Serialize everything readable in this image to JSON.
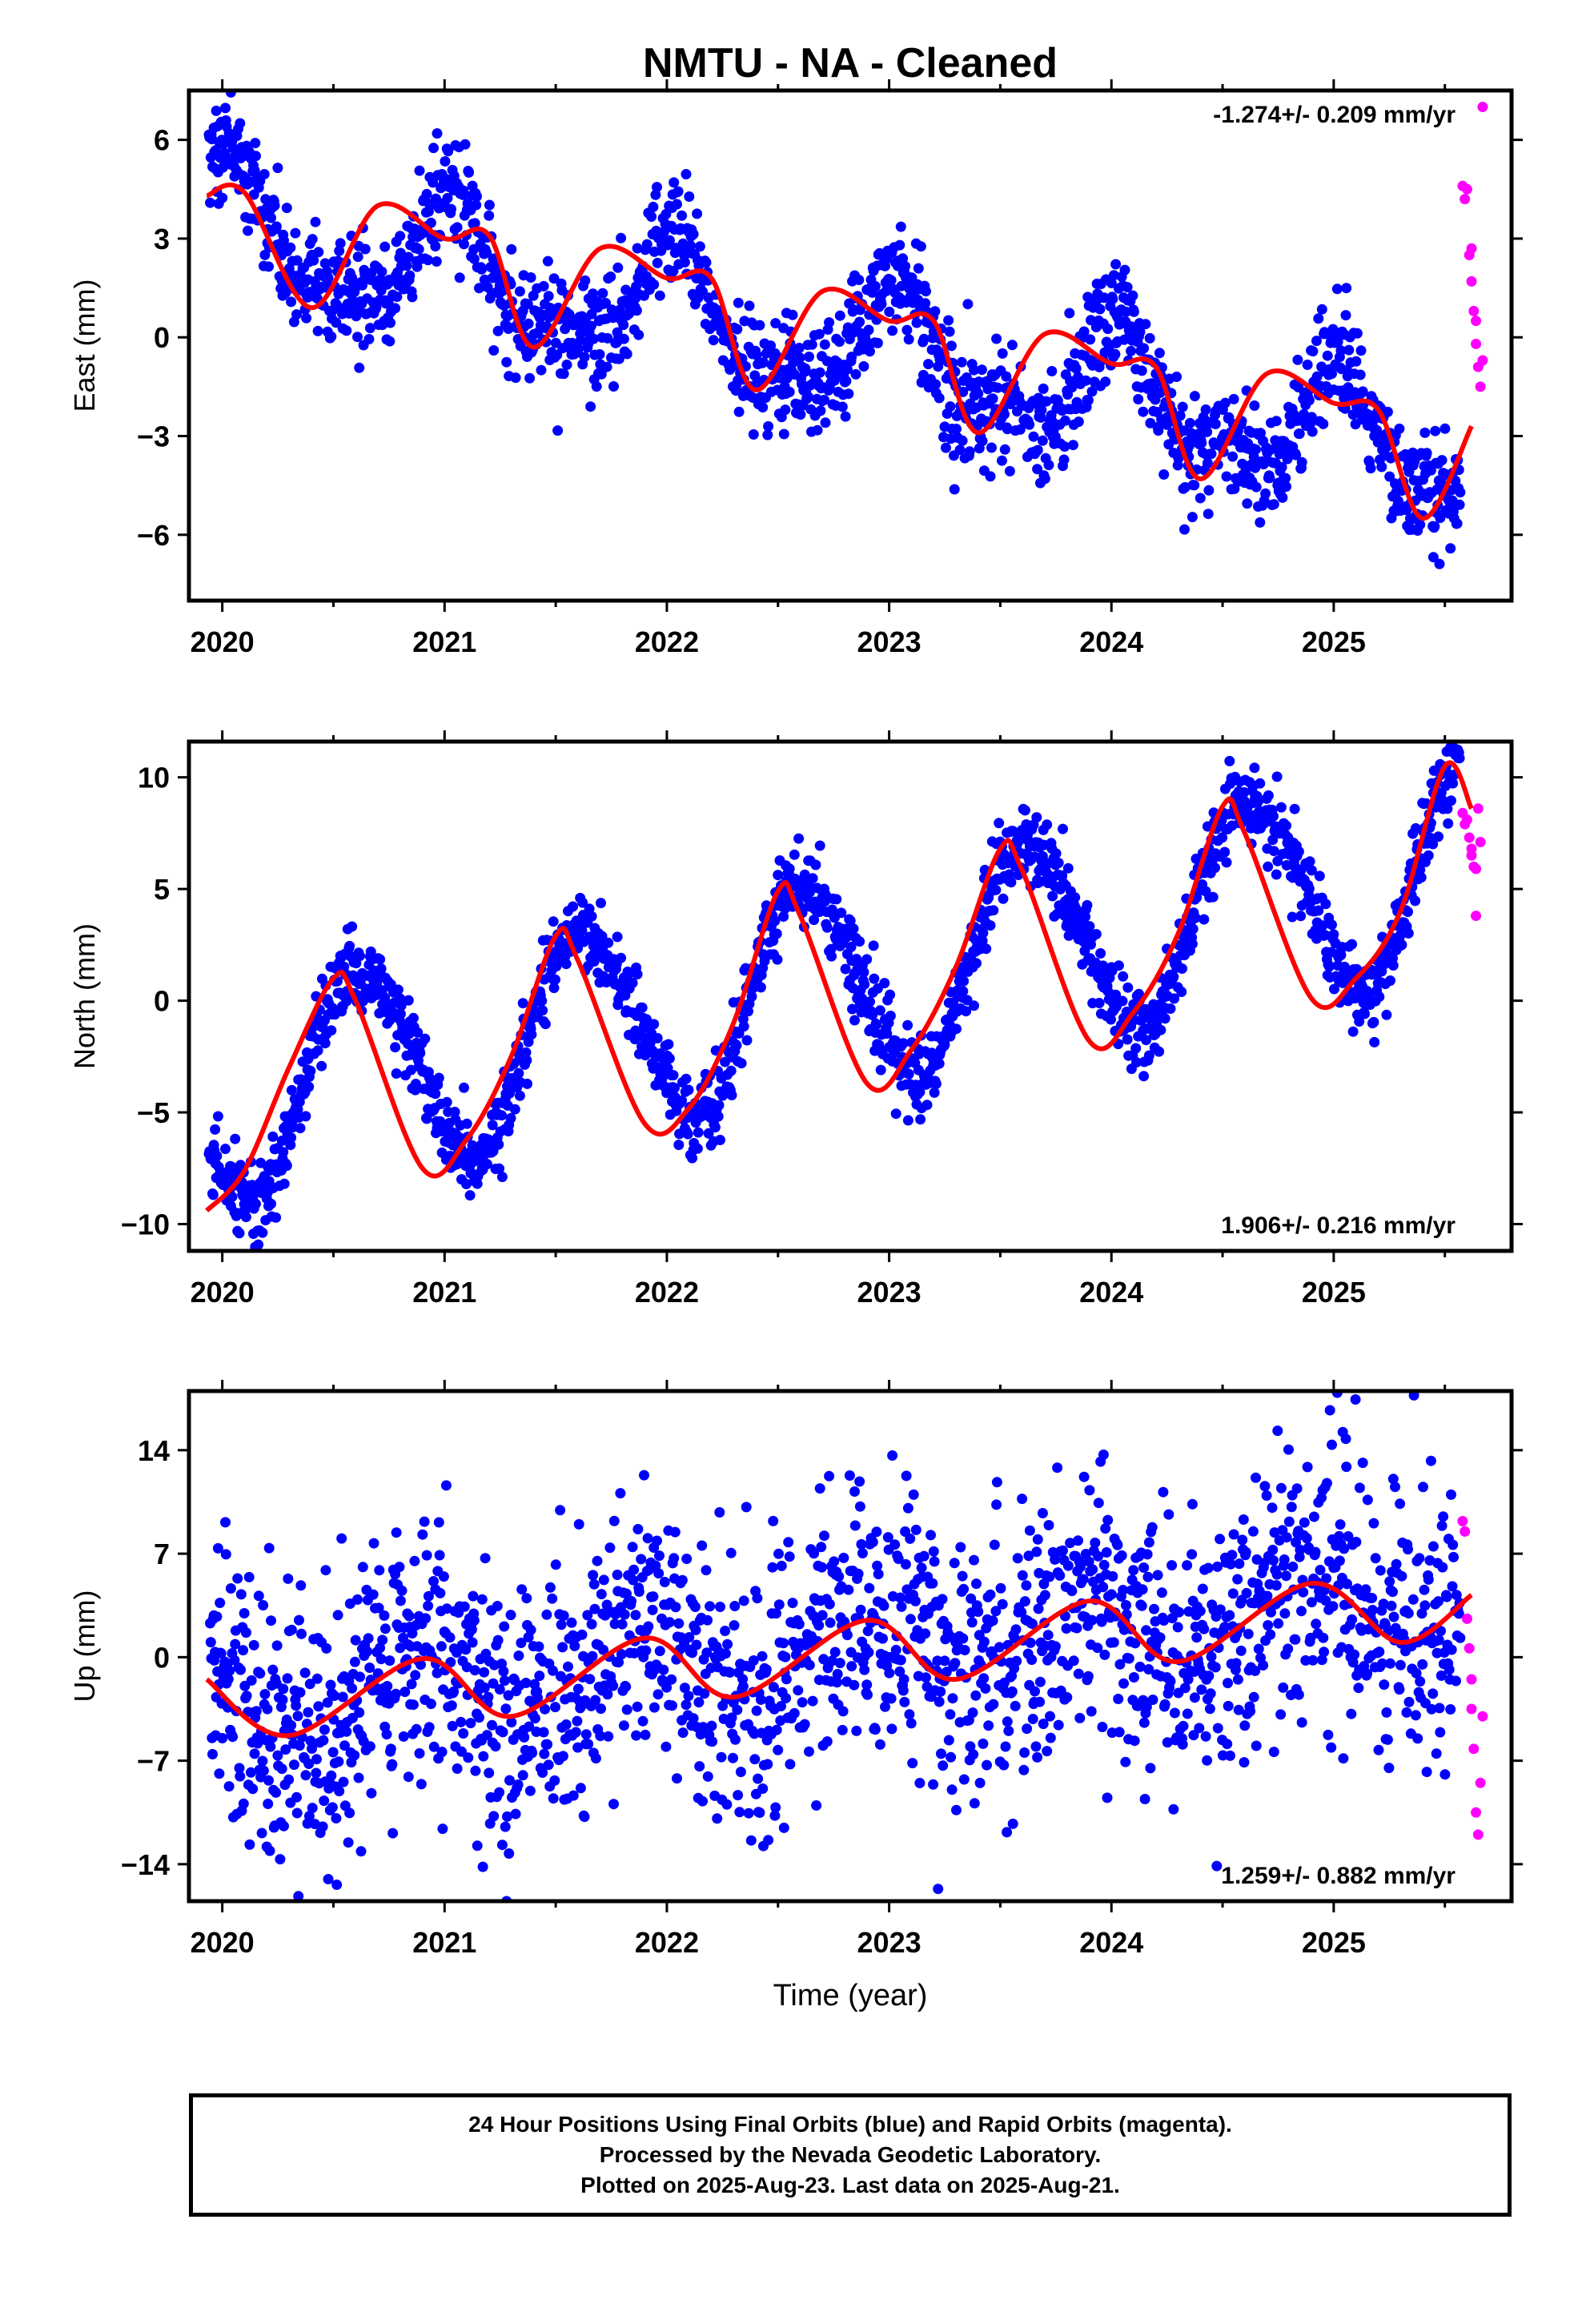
{
  "title": "NMTU  - NA - Cleaned",
  "xlabel": "Time (year)",
  "caption": [
    "24 Hour Positions Using Final Orbits (blue) and Rapid Orbits (magenta).",
    "Processed by the Nevada Geodetic Laboratory.",
    "Plotted on 2025-Aug-23. Last data on 2025-Aug-21."
  ],
  "colors": {
    "final": "#0000ff",
    "rapid": "#ff00ff",
    "fit": "#ff0000",
    "axis": "#000000"
  },
  "chart_data": [
    {
      "type": "scatter",
      "ylabel": "East (mm)",
      "xlim": [
        2019.85,
        2025.8
      ],
      "ylim": [
        -8,
        7.5
      ],
      "yticks": [
        -6,
        -3,
        0,
        3,
        6
      ],
      "yticklabels": [
        "−6",
        "−3",
        "0",
        "3",
        "6"
      ],
      "xticks": [
        2020,
        2021,
        2022,
        2023,
        2024,
        2025
      ],
      "xticklabels": [
        "2020",
        "2021",
        "2022",
        "2023",
        "2024",
        "2025"
      ],
      "rate_label": "-1.274+/- 0.209 mm/yr",
      "rate_position": "top-right",
      "fit_model": {
        "t0": 2022.7,
        "offset": -0.1,
        "rate": -1.274,
        "harmonics": [
          [
            1.7,
            0.3
          ],
          [
            0.7,
            0.25
          ]
        ],
        "std": 0.85
      },
      "fit_line": {
        "x": [
          2019.93,
          2020.1,
          2020.4,
          2020.7,
          2021.0,
          2021.2,
          2021.4,
          2021.7,
          2022.0,
          2022.2,
          2022.4,
          2022.7,
          2023.0,
          2023.2,
          2023.4,
          2023.7,
          2024.0,
          2024.2,
          2024.4,
          2024.7,
          2025.0,
          2025.2,
          2025.4,
          2025.62
        ],
        "y": [
          4.3,
          4.4,
          0.9,
          4.0,
          3.0,
          3.1,
          -0.3,
          2.7,
          1.8,
          1.8,
          -1.6,
          1.4,
          0.5,
          0.5,
          -2.9,
          0.1,
          -0.8,
          -0.9,
          -4.3,
          -1.1,
          -2.0,
          -2.2,
          -5.5,
          -2.7
        ]
      },
      "rapid": {
        "x": [
          2025.58,
          2025.59,
          2025.6,
          2025.61,
          2025.62,
          2025.62,
          2025.63,
          2025.64,
          2025.64,
          2025.65,
          2025.66,
          2025.67,
          2025.67
        ],
        "y": [
          4.6,
          4.2,
          4.5,
          2.5,
          2.7,
          1.7,
          0.8,
          0.5,
          -0.2,
          -0.9,
          -1.5,
          -0.7,
          7.0
        ]
      }
    },
    {
      "type": "scatter",
      "ylabel": "North (mm)",
      "xlim": [
        2019.85,
        2025.8
      ],
      "ylim": [
        -11.2,
        11.6
      ],
      "yticks": [
        -10,
        -5,
        0,
        5,
        10
      ],
      "yticklabels": [
        "−10",
        "−5",
        "0",
        "5",
        "10"
      ],
      "xticks": [
        2020,
        2021,
        2022,
        2023,
        2024,
        2025
      ],
      "xticklabels": [
        "2020",
        "2021",
        "2022",
        "2023",
        "2024",
        "2025"
      ],
      "rate_label": "1.906+/- 0.216 mm/yr",
      "rate_position": "bottom-right",
      "fit_model": {
        "t0": 2022.7,
        "offset": 0.7,
        "rate": 1.906,
        "harmonics": [
          [
            -3.5,
            -3.2
          ],
          [
            0.4,
            -0.2
          ]
        ],
        "std": 0.9
      },
      "fit_line": {
        "x": [
          2019.93,
          2020.1,
          2020.3,
          2020.5,
          2020.6,
          2020.9,
          2021.1,
          2021.3,
          2021.5,
          2021.6,
          2021.9,
          2022.1,
          2022.3,
          2022.5,
          2022.6,
          2022.9,
          2023.1,
          2023.3,
          2023.5,
          2023.6,
          2023.9,
          2024.1,
          2024.3,
          2024.5,
          2024.6,
          2024.9,
          2025.1,
          2025.3,
          2025.5,
          2025.62
        ],
        "y": [
          -9.4,
          -7.6,
          -3.0,
          1.0,
          0.0,
          -7.5,
          -6.2,
          -2.5,
          2.9,
          1.8,
          -5.5,
          -4.8,
          -1.0,
          4.9,
          3.8,
          -3.7,
          -2.2,
          1.5,
          6.8,
          5.8,
          -1.8,
          -0.5,
          3.0,
          8.7,
          7.5,
          0.1,
          1.0,
          4.0,
          10.5,
          8.6
        ]
      },
      "rapid": {
        "x": [
          2025.58,
          2025.59,
          2025.6,
          2025.61,
          2025.62,
          2025.62,
          2025.63,
          2025.64,
          2025.64,
          2025.65,
          2025.66
        ],
        "y": [
          8.4,
          7.9,
          8.1,
          7.3,
          6.8,
          6.5,
          6.0,
          5.9,
          3.8,
          8.6,
          7.1
        ]
      }
    },
    {
      "type": "scatter",
      "ylabel": "Up (mm)",
      "xlim": [
        2019.85,
        2025.8
      ],
      "ylim": [
        -16.5,
        18
      ],
      "yticks": [
        -14,
        -7,
        0,
        7,
        14
      ],
      "yticklabels": [
        "−14",
        "−7",
        "0",
        "7",
        "14"
      ],
      "xticks": [
        2020,
        2021,
        2022,
        2023,
        2024,
        2025
      ],
      "xticklabels": [
        "2020",
        "2021",
        "2022",
        "2023",
        "2024",
        "2025"
      ],
      "rate_label": "1.259+/- 0.882 mm/yr",
      "rate_position": "bottom-right",
      "fit_model": {
        "t0": 2022.7,
        "offset": 0.3,
        "rate": 1.259,
        "harmonics": [
          [
            2.2,
            -1.8
          ]
        ],
        "std": 4.6
      },
      "fit_line": {
        "x": [
          2019.93,
          2020.3,
          2020.9,
          2021.3,
          2021.9,
          2022.3,
          2022.9,
          2023.3,
          2023.9,
          2024.3,
          2024.9,
          2025.3,
          2025.62
        ],
        "y": [
          -1.5,
          -5.3,
          -0.1,
          -4.0,
          1.3,
          -2.7,
          2.5,
          -1.5,
          3.8,
          -0.3,
          5.0,
          1.0,
          4.2
        ]
      },
      "rapid": {
        "x": [
          2025.58,
          2025.59,
          2025.6,
          2025.61,
          2025.62,
          2025.62,
          2025.63,
          2025.64,
          2025.65,
          2025.66,
          2025.67
        ],
        "y": [
          9.2,
          8.5,
          2.6,
          0.6,
          -1.5,
          -3.5,
          -6.2,
          -10.5,
          -12.0,
          -8.5,
          -4.0
        ]
      }
    }
  ]
}
